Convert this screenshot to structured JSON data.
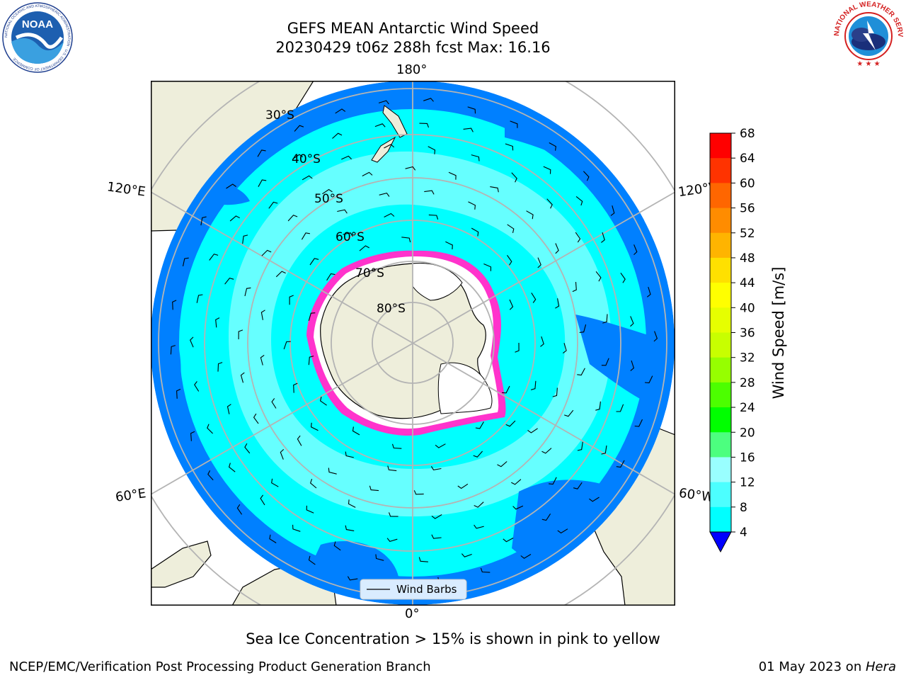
{
  "header": {
    "title_line1": "GEFS MEAN Antarctic Wind Speed",
    "title_line2": "20230429 t06z 288h fcst   Max: 16.16"
  },
  "logos": {
    "noaa": {
      "text": "NOAA",
      "ring_text": "NATIONAL OCEANIC AND ATMOSPHERIC ADMINISTRATION · U.S. DEPARTMENT OF COMMERCE"
    },
    "nws": {
      "ring_text": "NATIONAL WEATHER SERVICE"
    }
  },
  "map": {
    "longitude_labels": {
      "top": "180°",
      "bottom": "0°",
      "upper_left": "120°E",
      "upper_right": "120°W",
      "lower_left": "60°E",
      "lower_right": "60°W"
    },
    "latitude_labels": [
      "30°S",
      "40°S",
      "50°S",
      "60°S",
      "70°S",
      "80°S"
    ],
    "legend_label": "Wind Barbs",
    "colors": {
      "ocean_low": "#0080ff",
      "ocean_mid": "#00ffff",
      "ocean_high": "#66ffff",
      "land": "#eeeedb",
      "sea_ice": "#ff33cc",
      "grid": "#b4b4b4"
    }
  },
  "colorbar": {
    "label": "Wind Speed [m/s]",
    "ticks": [
      "68",
      "64",
      "60",
      "56",
      "52",
      "48",
      "44",
      "40",
      "36",
      "32",
      "28",
      "24",
      "20",
      "16",
      "12",
      "8",
      "4"
    ],
    "colors": [
      "#ff0000",
      "#ff3300",
      "#ff6600",
      "#ff8c00",
      "#ffb400",
      "#ffe000",
      "#ffff00",
      "#e6ff00",
      "#c8ff00",
      "#96ff00",
      "#4cff00",
      "#00ff00",
      "#4cff7f",
      "#99ffff",
      "#4cffff",
      "#00ffff",
      "#0080ff"
    ],
    "under_color": "#0000ff"
  },
  "subtitle": "Sea Ice Concentration > 15% is shown in pink to yellow",
  "footer": {
    "left": "NCEP/EMC/Verification Post Processing Product Generation Branch",
    "right_prefix": "01 May 2023 on ",
    "right_machine": "Hera"
  }
}
